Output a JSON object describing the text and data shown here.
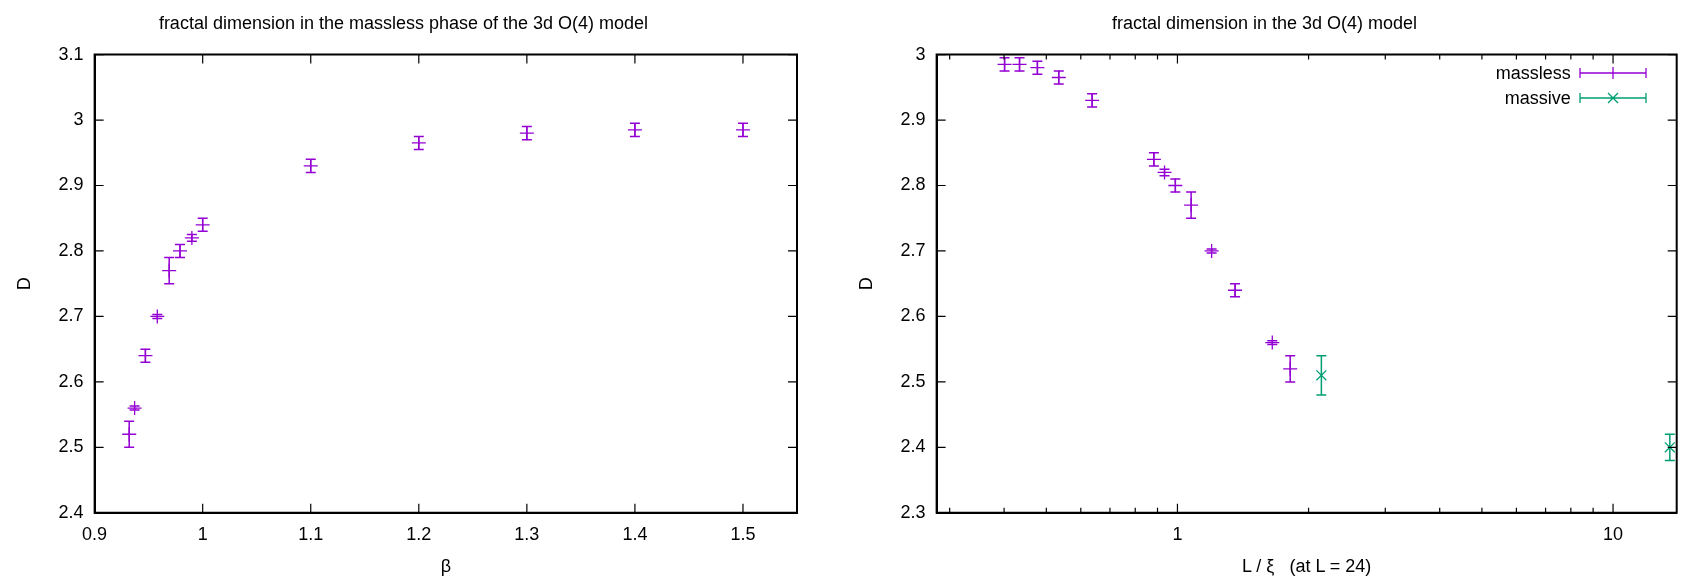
{
  "chart_data": [
    {
      "type": "scatter",
      "title": "fractal dimension in the massless phase of the 3d O(4) model",
      "xlabel": "β",
      "ylabel": "D",
      "xlim": [
        0.9,
        1.55
      ],
      "xticks": [
        0.9,
        1,
        1.1,
        1.2,
        1.3,
        1.4,
        1.5
      ],
      "ylim": [
        2.4,
        3.1
      ],
      "yticks": [
        2.4,
        2.5,
        2.6,
        2.7,
        2.8,
        2.9,
        3,
        3.1
      ],
      "grid": false,
      "legend": false,
      "marker": "cross",
      "series": [
        {
          "color": "#9400d3",
          "x": [
            0.932,
            0.937,
            0.947,
            0.958,
            0.969,
            0.979,
            0.99,
            1.0,
            1.1,
            1.2,
            1.3,
            1.4,
            1.5
          ],
          "values": [
            2.52,
            2.56,
            2.64,
            2.7,
            2.77,
            2.8,
            2.82,
            2.84,
            2.93,
            2.965,
            2.98,
            2.985,
            2.985
          ],
          "errors": [
            0.02,
            0.003,
            0.01,
            0.003,
            0.02,
            0.01,
            0.005,
            0.01,
            0.01,
            0.01,
            0.01,
            0.01,
            0.01
          ]
        }
      ]
    },
    {
      "type": "scatter",
      "title": "fractal dimension in the 3d O(4) model",
      "xlabel": "L / ξ   (at L = 24)",
      "ylabel": "D",
      "log": "x",
      "xlim": [
        0.28,
        14
      ],
      "xticks": [
        {
          "value": 0.3,
          "label": null
        },
        {
          "value": 0.4,
          "label": null
        },
        {
          "value": 0.5,
          "label": null
        },
        {
          "value": 0.6,
          "label": null
        },
        {
          "value": 0.7,
          "label": null
        },
        {
          "value": 0.8,
          "label": null
        },
        {
          "value": 0.9,
          "label": null
        },
        1,
        {
          "value": 2,
          "label": null
        },
        {
          "value": 3,
          "label": null
        },
        {
          "value": 4,
          "label": null
        },
        {
          "value": 5,
          "label": null
        },
        {
          "value": 6,
          "label": null
        },
        {
          "value": 7,
          "label": null
        },
        {
          "value": 8,
          "label": null
        },
        {
          "value": 9,
          "label": null
        },
        10
      ],
      "ylim": [
        2.3,
        3
      ],
      "yticks": [
        2.3,
        2.4,
        2.5,
        2.6,
        2.7,
        2.8,
        2.9,
        3
      ],
      "grid": false,
      "legend": "top right",
      "marker": "cross",
      "series": [
        {
          "name": "massless",
          "color": "#9400d3",
          "x": [
            0.401,
            0.434,
            0.477,
            0.534,
            0.637,
            0.883,
            0.934,
            0.989,
            1.075,
            1.198,
            1.356,
            1.651,
            1.815
          ],
          "values": [
            2.985,
            2.985,
            2.98,
            2.965,
            2.93,
            2.84,
            2.82,
            2.8,
            2.77,
            2.7,
            2.64,
            2.56,
            2.52
          ],
          "errors": [
            0.01,
            0.01,
            0.01,
            0.01,
            0.01,
            0.01,
            0.005,
            0.01,
            0.02,
            0.003,
            0.01,
            0.003,
            0.02
          ]
        },
        {
          "name": "massive",
          "color": "#009e73",
          "x": [
            2.14,
            13.5
          ],
          "values": [
            2.51,
            2.4
          ],
          "errors": [
            0.03,
            0.02
          ]
        }
      ]
    }
  ]
}
